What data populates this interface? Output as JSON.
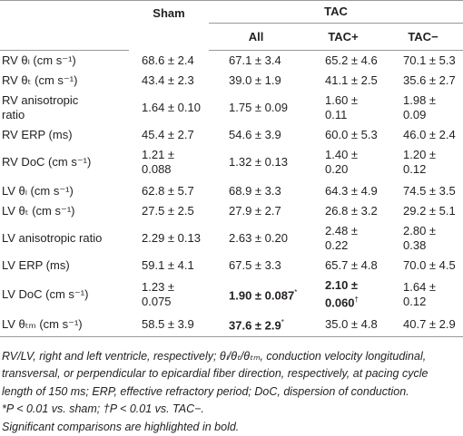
{
  "table": {
    "header": {
      "sham": "Sham",
      "tac": "TAC",
      "subgroups": [
        "All",
        "TAC+",
        "TAC−"
      ]
    },
    "rows": [
      {
        "label": "RV θₗ (cm s⁻¹)",
        "cells": [
          "68.6 ± 2.4",
          "67.1 ± 3.4",
          "65.2 ± 4.6",
          "70.1 ± 5.3"
        ]
      },
      {
        "label": "RV θₜ (cm s⁻¹)",
        "cells": [
          "43.4 ± 2.3",
          "39.0 ± 1.9",
          "41.1 ± 2.5",
          "35.6 ± 2.7"
        ]
      },
      {
        "label": "RV anisotropic ratio",
        "cells": [
          "1.64 ± 0.10",
          "1.75 ± 0.09",
          "1.60 ± 0.11",
          "1.98 ± 0.09"
        ]
      },
      {
        "label": "RV ERP (ms)",
        "cells": [
          "45.4 ± 2.7",
          "54.6 ± 3.9",
          "60.0 ± 5.3",
          "46.0 ± 2.4"
        ]
      },
      {
        "label": "RV DoC (cm s⁻¹)",
        "cells": [
          "1.21 ± 0.088",
          "1.32 ± 0.13",
          "1.40 ± 0.20",
          "1.20 ± 0.12"
        ]
      },
      {
        "label": "LV θₗ (cm s⁻¹)",
        "cells": [
          "62.8 ± 5.7",
          "68.9 ± 3.3",
          "64.3 ± 4.9",
          "74.5 ± 3.5"
        ]
      },
      {
        "label": "LV θₜ (cm s⁻¹)",
        "cells": [
          "27.5 ± 2.5",
          "27.9 ± 2.7",
          "26.8 ± 3.2",
          "29.2 ± 5.1"
        ]
      },
      {
        "label": "LV anisotropic ratio",
        "cells": [
          "2.29 ± 0.13",
          "2.63 ± 0.20",
          "2.48 ± 0.22",
          "2.80 ± 0.38"
        ]
      },
      {
        "label": "LV ERP (ms)",
        "cells": [
          "59.1 ± 4.1",
          "67.5 ± 3.3",
          "65.7 ± 4.8",
          "70.0 ± 4.5"
        ]
      },
      {
        "label": "LV DoC (cm s⁻¹)",
        "cells": [
          "1.23 ± 0.075",
          {
            "text": "1.90 ± 0.087",
            "sup": "*",
            "bold": true
          },
          {
            "text": "2.10 ± 0.060",
            "sup": "†",
            "bold": true
          },
          "1.64 ± 0.12"
        ]
      },
      {
        "label": "LV θₜₘ (cm s⁻¹)",
        "cells": [
          "58.5 ± 3.9",
          {
            "text": "37.6 ± 2.9",
            "sup": "*",
            "bold": true
          },
          "35.0 ± 4.8",
          "40.7 ± 2.9"
        ]
      }
    ],
    "footnotes": [
      "RV/LV, right and left ventricle, respectively; θₗ/θₜ/θₜₘ, conduction velocity longitudinal, transversal, or perpendicular to epicardial fiber direction, respectively, at pacing cycle length of 150 ms; ERP, effective refractory period; DoC, dispersion of conduction.",
      "*P < 0.01 vs. sham; †P < 0.01 vs. TAC−.",
      "Significant comparisons are highlighted in bold."
    ]
  }
}
